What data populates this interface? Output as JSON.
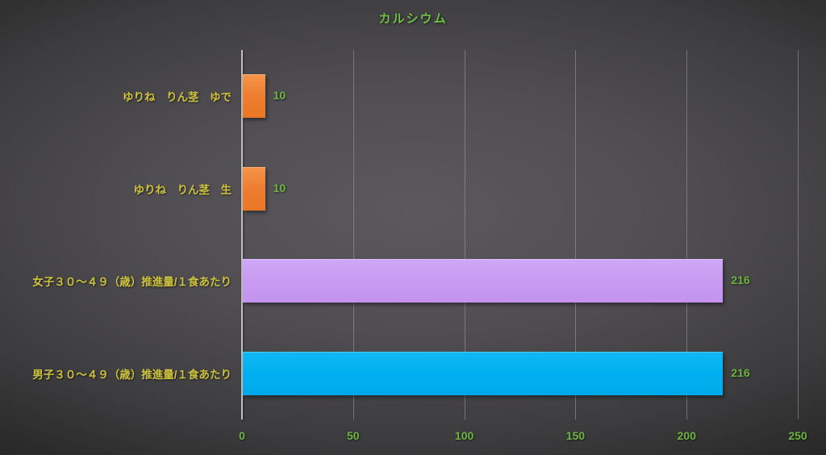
{
  "chart_data": {
    "type": "bar",
    "orientation": "horizontal",
    "title": "カルシウム",
    "categories": [
      "ゆりね　りん茎　ゆで",
      "ゆりね　りん茎　生",
      "女子３０～４９（歳）推進量/１食あたり",
      "男子３０～４９（歳）推進量/１食あたり"
    ],
    "values": [
      10,
      10,
      216,
      216
    ],
    "data_labels": [
      "10",
      "10",
      "216",
      "216"
    ],
    "bar_colors": [
      "#ED7D31",
      "#ED7D31",
      "#C89BF0",
      "#00B0F0"
    ],
    "xlabel": "",
    "ylabel": "",
    "xlim": [
      0,
      250
    ],
    "xticks": [
      0,
      50,
      100,
      150,
      200,
      250
    ],
    "grid": true,
    "legend": false
  },
  "colors": {
    "title_green": "#70BF45",
    "category_yellow": "#CDC23D",
    "value_green": "#6DB340",
    "tick_green": "#6DB340",
    "axis_line": "#C0C0C0",
    "gridline": "rgba(158,158,158,0.55)",
    "bar_gradients": [
      {
        "top": "#F6954A",
        "bottom": "#E97723"
      },
      {
        "top": "#F6954A",
        "bottom": "#E97723"
      },
      {
        "top": "#D0A7F7",
        "bottom": "#C393EF"
      },
      {
        "top": "#12B7F2",
        "bottom": "#00A9E9"
      }
    ]
  }
}
